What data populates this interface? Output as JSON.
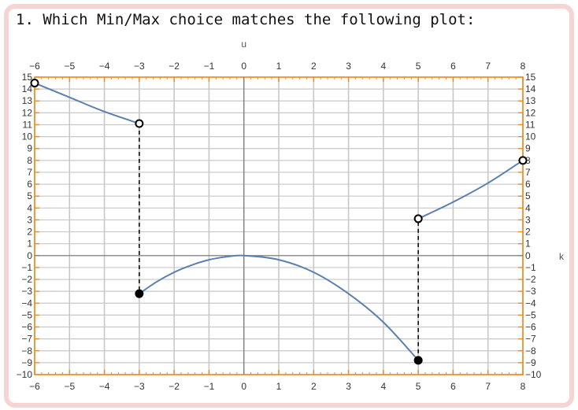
{
  "question": {
    "text": "1. Which Min/Max choice matches the following plot:"
  },
  "chart_data": {
    "type": "line",
    "title": "",
    "xlabel": "k",
    "ylabel": "u",
    "xlim": [
      -6,
      8
    ],
    "ylim": [
      -10,
      15
    ],
    "grid": true,
    "x_ticks": [
      -6,
      -5,
      -4,
      -3,
      -2,
      -1,
      0,
      1,
      2,
      3,
      4,
      5,
      6,
      7,
      8
    ],
    "y_ticks": [
      -10,
      -9,
      -8,
      -7,
      -6,
      -5,
      -4,
      -3,
      -2,
      -1,
      0,
      1,
      2,
      3,
      4,
      5,
      6,
      7,
      8,
      9,
      10,
      11,
      12,
      13,
      14,
      15
    ],
    "segments": [
      {
        "x": [
          -6,
          -5,
          -4,
          -3
        ],
        "y": [
          14.5,
          13.3,
          12.1,
          11.1
        ],
        "start_point": "open",
        "end_point": "open"
      },
      {
        "x": [
          -3,
          -2.5,
          -2,
          -1.5,
          -1,
          -0.5,
          0,
          1,
          2,
          3,
          4,
          5
        ],
        "y": [
          -3.2,
          -2.2,
          -1.4,
          -0.8,
          -0.35,
          -0.1,
          0,
          -0.35,
          -1.4,
          -3.2,
          -5.6,
          -8.8
        ],
        "start_point": "closed",
        "end_point": "closed"
      },
      {
        "x": [
          5,
          6,
          7,
          8
        ],
        "y": [
          3.1,
          4.5,
          6.1,
          8.0
        ],
        "start_point": "open",
        "end_point": "open"
      }
    ],
    "jumps": [
      {
        "x": -3,
        "y_from": 11.1,
        "y_to": -3.2
      },
      {
        "x": 5,
        "y_from": -8.8,
        "y_to": 3.1
      }
    ],
    "colors": {
      "curve": "#5b7fb0",
      "frame": "#f08a1c",
      "grid": "#c8c8c8",
      "axis": "#777777"
    }
  }
}
